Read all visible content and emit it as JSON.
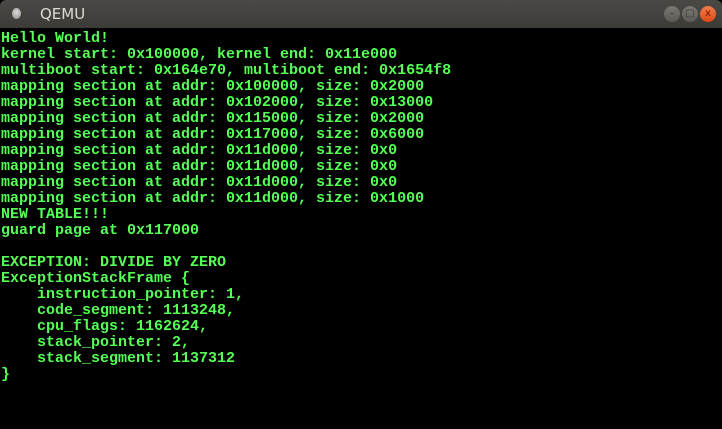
{
  "window": {
    "title": "QEMU",
    "minimize_label": "–",
    "maximize_label": "□",
    "close_label": "x"
  },
  "console": {
    "text_color": "#55ff55",
    "lines": [
      "Hello World!",
      "kernel start: 0x100000, kernel end: 0x11e000",
      "multiboot start: 0x164e70, multiboot end: 0x1654f8",
      "mapping section at addr: 0x100000, size: 0x2000",
      "mapping section at addr: 0x102000, size: 0x13000",
      "mapping section at addr: 0x115000, size: 0x2000",
      "mapping section at addr: 0x117000, size: 0x6000",
      "mapping section at addr: 0x11d000, size: 0x0",
      "mapping section at addr: 0x11d000, size: 0x0",
      "mapping section at addr: 0x11d000, size: 0x0",
      "mapping section at addr: 0x11d000, size: 0x1000",
      "NEW TABLE!!!",
      "guard page at 0x117000",
      "",
      "EXCEPTION: DIVIDE BY ZERO",
      "ExceptionStackFrame {",
      "    instruction_pointer: 1,",
      "    code_segment: 1113248,",
      "    cpu_flags: 1162624,",
      "    stack_pointer: 2,",
      "    stack_segment: 1137312",
      "}"
    ]
  }
}
